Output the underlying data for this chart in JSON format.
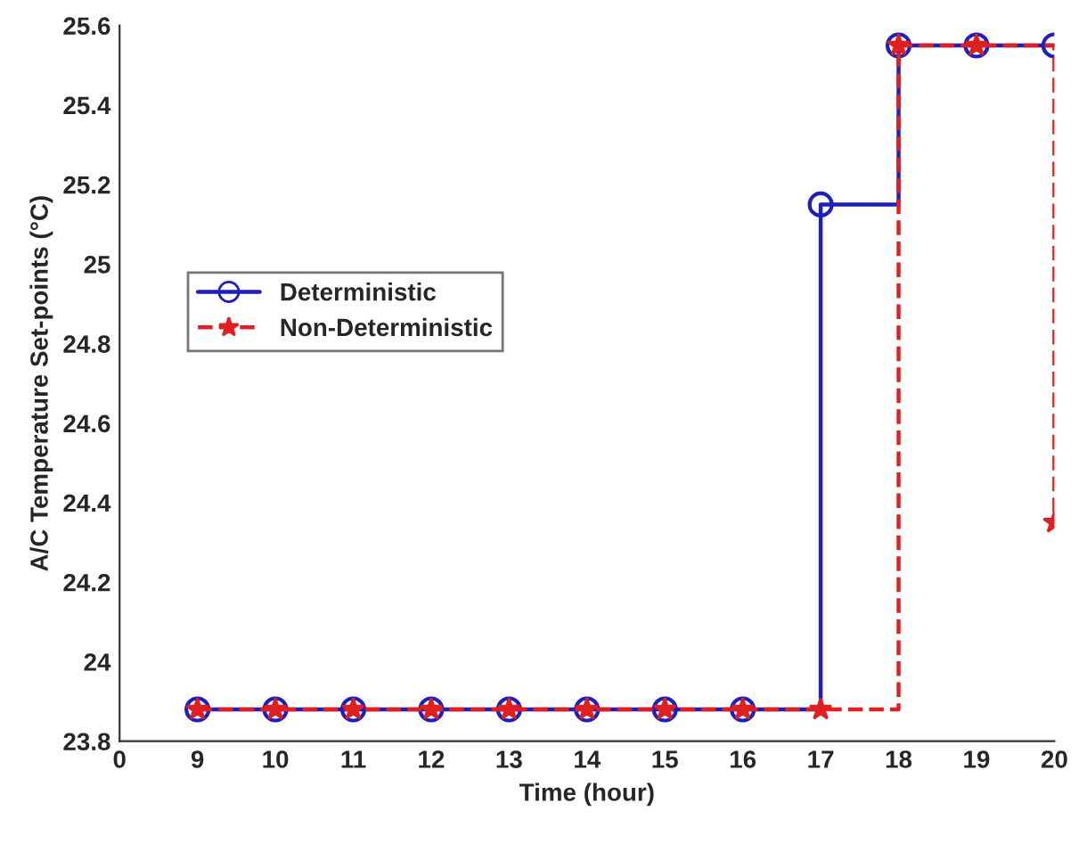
{
  "chart_data": {
    "type": "step",
    "xlabel": "Time (hour)",
    "ylabel": "A/C Temperature Set-points (°C)",
    "categories": [
      "0",
      "9",
      "10",
      "11",
      "12",
      "13",
      "14",
      "15",
      "16",
      "17",
      "18",
      "19",
      "20"
    ],
    "series": [
      {
        "name": "Deterministic",
        "color": "#1f1fbf",
        "marker": "circle",
        "line_style": "solid",
        "values": [
          null,
          23.88,
          23.88,
          23.88,
          23.88,
          23.88,
          23.88,
          23.88,
          23.88,
          25.15,
          25.55,
          25.55,
          25.55
        ]
      },
      {
        "name": "Non-Deterministic",
        "color": "#e02020",
        "marker": "star",
        "line_style": "dashed",
        "values": [
          null,
          23.88,
          23.88,
          23.88,
          23.88,
          23.88,
          23.88,
          23.88,
          23.88,
          23.88,
          25.55,
          25.55,
          24.35
        ]
      }
    ],
    "ylim": [
      23.8,
      25.6
    ],
    "yticks": [
      23.8,
      24,
      24.2,
      24.4,
      24.6,
      24.8,
      25,
      25.2,
      25.4,
      25.6
    ],
    "grid": false,
    "legend": "center left"
  }
}
